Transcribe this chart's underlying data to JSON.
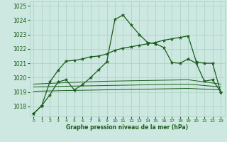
{
  "bg_color": "#cce8e0",
  "grid_color": "#a8cfc4",
  "line_color": "#1a5c1a",
  "xlabel": "Graphe pression niveau de la mer (hPa)",
  "xticks": [
    0,
    1,
    2,
    3,
    4,
    5,
    6,
    7,
    8,
    9,
    10,
    11,
    12,
    13,
    14,
    15,
    16,
    17,
    18,
    19,
    20,
    21,
    22,
    23
  ],
  "yticks": [
    1018,
    1019,
    1020,
    1021,
    1022,
    1023,
    1024,
    1025
  ],
  "ylim": [
    1017.3,
    1025.3
  ],
  "xlim": [
    -0.5,
    23.5
  ],
  "s1_x": [
    0,
    1,
    2,
    3,
    4,
    5,
    6,
    7,
    8,
    9,
    10,
    11,
    12,
    13,
    14,
    15,
    16,
    17,
    18,
    19,
    20,
    21,
    22,
    23
  ],
  "s1_y": [
    1017.5,
    1018.05,
    1018.8,
    1019.7,
    1019.85,
    1019.15,
    1019.5,
    1020.0,
    1020.55,
    1021.1,
    1024.05,
    1024.35,
    1023.65,
    1023.0,
    1022.45,
    1022.35,
    1022.1,
    1021.05,
    1021.0,
    1021.3,
    1021.0,
    1019.75,
    1019.85,
    1019.0
  ],
  "s2_x": [
    0,
    1,
    2,
    3,
    4,
    5,
    6,
    7,
    8,
    9,
    10,
    11,
    12,
    13,
    14,
    15,
    16,
    17,
    18,
    19,
    20,
    21,
    22,
    23
  ],
  "s2_y": [
    1017.5,
    1018.05,
    1019.7,
    1020.5,
    1021.15,
    1021.2,
    1021.3,
    1021.45,
    1021.5,
    1021.65,
    1021.9,
    1022.05,
    1022.15,
    1022.25,
    1022.35,
    1022.45,
    1022.6,
    1022.7,
    1022.8,
    1022.9,
    1021.1,
    1021.0,
    1021.0,
    1019.0
  ],
  "s3_x": [
    0,
    4,
    9,
    14,
    19,
    23
  ],
  "s3_y": [
    1019.05,
    1019.1,
    1019.15,
    1019.2,
    1019.25,
    1019.15
  ],
  "s4_x": [
    0,
    4,
    9,
    14,
    19,
    23
  ],
  "s4_y": [
    1019.35,
    1019.4,
    1019.45,
    1019.5,
    1019.55,
    1019.35
  ],
  "s5_x": [
    0,
    4,
    9,
    14,
    19,
    23
  ],
  "s5_y": [
    1019.55,
    1019.65,
    1019.75,
    1019.8,
    1019.85,
    1019.55
  ],
  "lw": 0.9,
  "lw_flat": 0.7,
  "ms": 3.5
}
